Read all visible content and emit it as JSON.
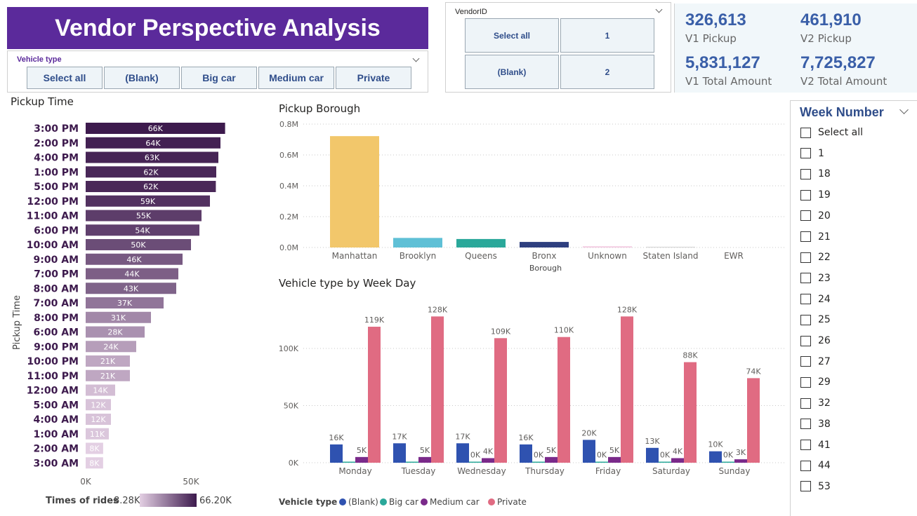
{
  "header": {
    "title": "Vendor Perspective Analysis"
  },
  "vehicle_slicer": {
    "title": "Vehicle type",
    "options": [
      "Select all",
      "(Blank)",
      "Big car",
      "Medium car",
      "Private"
    ]
  },
  "vendor_slicer": {
    "title": "VendorID",
    "options": [
      "Select all",
      "1",
      "(Blank)",
      "2"
    ]
  },
  "kpis": [
    {
      "value": "326,613",
      "label": "V1 Pickup"
    },
    {
      "value": "461,910",
      "label": "V2 Pickup"
    },
    {
      "value": "5,831,127",
      "label": "V1 Total Amount"
    },
    {
      "value": "7,725,827",
      "label": "V2 Total Amount"
    }
  ],
  "pickup_time": {
    "title": "Pickup Time",
    "y_axis_label": "Pickup Time",
    "x_ticks": [
      "0K",
      "50K"
    ],
    "legend_label": "Times of rides",
    "legend_min": "8.28K",
    "legend_max": "66.20K",
    "color_low": "#e3cfe3",
    "color_high": "#3d1a4d"
  },
  "pickup_borough": {
    "title": "Pickup Borough",
    "x_axis_label": "Borough",
    "y_ticks": [
      "0.0M",
      "0.2M",
      "0.4M",
      "0.6M",
      "0.8M"
    ]
  },
  "weekday": {
    "title": "Vehicle type by Week Day",
    "y_ticks": [
      "0K",
      "50K",
      "100K"
    ],
    "legend_title": "Vehicle type"
  },
  "week_slicer": {
    "title": "Week Number",
    "items": [
      "Select all",
      "1",
      "18",
      "19",
      "20",
      "21",
      "22",
      "23",
      "24",
      "25",
      "26",
      "27",
      "29",
      "32",
      "38",
      "41",
      "44",
      "53"
    ]
  },
  "chart_data": [
    {
      "type": "bar",
      "orientation": "horizontal",
      "title": "Pickup Time",
      "ylabel": "Pickup Time",
      "xlim": [
        0,
        66200
      ],
      "categories": [
        "3:00 PM",
        "2:00 PM",
        "4:00 PM",
        "1:00 PM",
        "5:00 PM",
        "12:00 PM",
        "11:00 AM",
        "6:00 PM",
        "10:00 AM",
        "9:00 AM",
        "7:00 PM",
        "8:00 AM",
        "7:00 AM",
        "8:00 PM",
        "6:00 AM",
        "9:00 PM",
        "10:00 PM",
        "11:00 PM",
        "12:00 AM",
        "5:00 AM",
        "4:00 AM",
        "1:00 AM",
        "2:00 AM",
        "3:00 AM"
      ],
      "values": [
        66200,
        64000,
        63000,
        62000,
        61800,
        59000,
        55000,
        54000,
        50000,
        46000,
        44000,
        43000,
        37000,
        31000,
        28000,
        24000,
        21000,
        21000,
        14000,
        12000,
        12000,
        11000,
        8300,
        8280
      ],
      "labels": [
        "66K",
        "64K",
        "63K",
        "62K",
        "62K",
        "59K",
        "55K",
        "54K",
        "50K",
        "46K",
        "44K",
        "43K",
        "37K",
        "31K",
        "28K",
        "24K",
        "21K",
        "21K",
        "14K",
        "12K",
        "12K",
        "11K",
        "8K",
        "8K"
      ],
      "legend": "Times of rides"
    },
    {
      "type": "bar",
      "title": "Pickup Borough",
      "xlabel": "Borough",
      "ylim": [
        0,
        800000
      ],
      "grid": true,
      "categories": [
        "Manhattan",
        "Brooklyn",
        "Queens",
        "Bronx",
        "Unknown",
        "Staten Island",
        "EWR"
      ],
      "values": [
        722000,
        62000,
        55000,
        36000,
        7000,
        3000,
        0
      ],
      "colors": [
        "#f2c76b",
        "#5fc0d6",
        "#2aa89a",
        "#2e3f7f",
        "#f0c2dc",
        "#b8b8b8",
        "#c8c8c8"
      ]
    },
    {
      "type": "bar",
      "title": "Vehicle type by Week Day",
      "ylim": [
        0,
        130000
      ],
      "grid": true,
      "legend_title": "Vehicle type",
      "legend_position": "bottom-left",
      "categories": [
        "Monday",
        "Tuesday",
        "Wednesday",
        "Thursday",
        "Friday",
        "Saturday",
        "Sunday"
      ],
      "series": [
        {
          "name": "(Blank)",
          "color": "#2f52b0",
          "values": [
            16000,
            17000,
            17000,
            16000,
            20000,
            13000,
            10000
          ],
          "labels": [
            "16K",
            "17K",
            "17K",
            "16K",
            "20K",
            "13K",
            "10K"
          ]
        },
        {
          "name": "Big car",
          "color": "#2aa89a",
          "values": [
            200,
            200,
            300,
            300,
            300,
            300,
            200
          ],
          "labels": [
            "",
            "",
            "0K",
            "0K",
            "0K",
            "0K",
            "0K"
          ]
        },
        {
          "name": "Medium car",
          "color": "#7a2a8a",
          "values": [
            5000,
            5000,
            4000,
            5000,
            5000,
            4000,
            3000
          ],
          "labels": [
            "5K",
            "5K",
            "4K",
            "5K",
            "5K",
            "4K",
            "3K"
          ]
        },
        {
          "name": "Private",
          "color": "#e06b82",
          "values": [
            119000,
            128000,
            109000,
            110000,
            128000,
            88000,
            74000
          ],
          "labels": [
            "119K",
            "128K",
            "109K",
            "110K",
            "128K",
            "88K",
            "74K"
          ]
        }
      ]
    }
  ]
}
